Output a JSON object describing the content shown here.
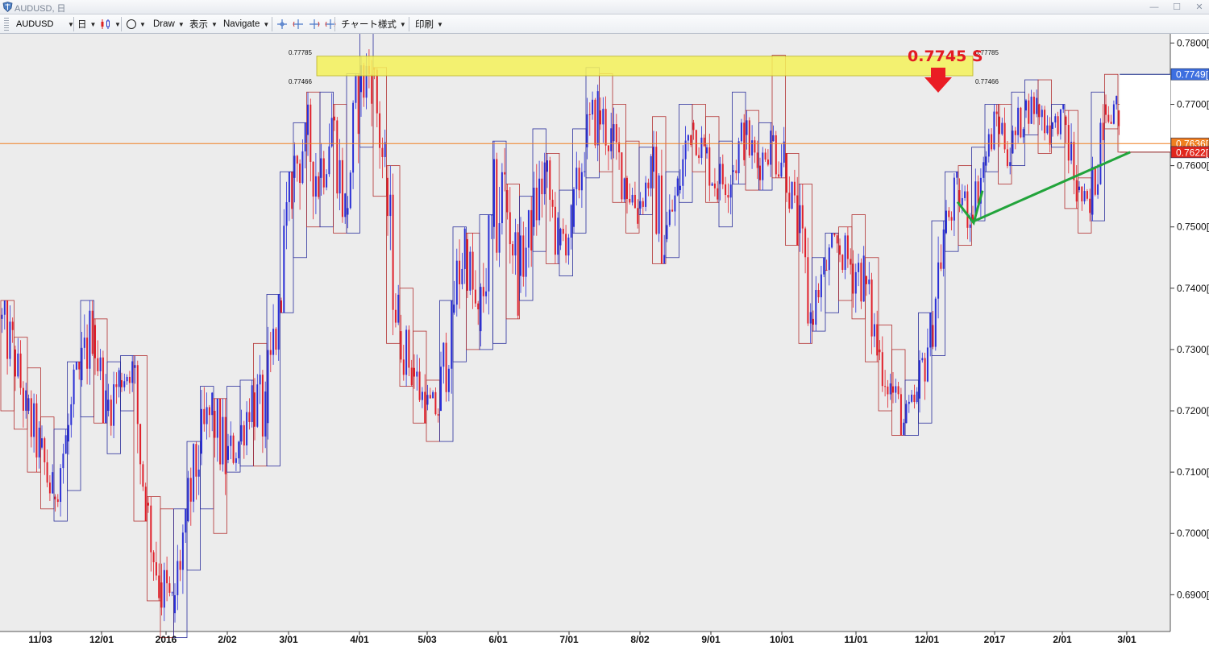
{
  "window": {
    "title": "AUDUSD, 日",
    "icon": "shield-logo-icon"
  },
  "toolbar": {
    "symbol": "AUDUSD",
    "timeframe": "日",
    "chart_type_icon": "candlestick-icon",
    "shape_icon": "circle-icon",
    "draw": "Draw",
    "display": "表示",
    "navigate": "Navigate",
    "crosshair_icons": [
      "crosshair-icon",
      "crosshair-left-icon",
      "crosshair-right-icon",
      "crosshair-both-icon"
    ],
    "chart_style": "チャート様式",
    "print": "印刷"
  },
  "colors": {
    "up": "#2a2fd6",
    "down": "#e01f2a",
    "zone": "#f5f25a",
    "current": "#f07f20",
    "tag_blue": "#3d6fe0",
    "tag_red": "#e1261d",
    "arrow_green": "#22a43b",
    "arrow_red": "#ea1c24"
  },
  "chart_data": {
    "type": "candlestick",
    "symbol": "AUDUSD",
    "timeframe": "日",
    "ylim": [
      0.684,
      0.7815
    ],
    "y_ticks": [
      "0.7800[0",
      "0.7700[0",
      "0.7600[0",
      "0.7500[0",
      "0.7400[0",
      "0.7300[0",
      "0.7200[0",
      "0.7100[0",
      "0.7000[0",
      "0.6900[0"
    ],
    "y_tick_values": [
      0.78,
      0.77,
      0.76,
      0.75,
      0.74,
      0.73,
      0.72,
      0.71,
      0.7,
      0.69
    ],
    "x_ticks": [
      "11/03",
      "12/01",
      "2016",
      "2/02",
      "3/01",
      "4/01",
      "5/03",
      "6/01",
      "7/01",
      "8/02",
      "9/01",
      "10/01",
      "11/01",
      "12/01",
      "2017",
      "2/01",
      "3/01"
    ],
    "x_tick_index": [
      8,
      27,
      47,
      66,
      85,
      107,
      128,
      150,
      172,
      194,
      216,
      238,
      261,
      283,
      304,
      325,
      345
    ],
    "resistance_zone": {
      "upper": 0.77785,
      "lower": 0.77466,
      "upper_label": "0.77785",
      "lower_label": "0.77466"
    },
    "annotation": "0.7745 S",
    "price_tags": [
      {
        "label": "0.7749[",
        "value": 0.7749,
        "color": "#3d6fe0"
      },
      {
        "label": "0.7636[",
        "value": 0.7636,
        "color": "#f07f20"
      },
      {
        "label": "0.7622[",
        "value": 0.7622,
        "color": "#e1261d"
      }
    ],
    "current_price": 0.7636,
    "forecast": {
      "direction": "down",
      "from": 0.7622,
      "to": 0.7525
    },
    "weekly_ranges": [
      {
        "o": 0.735,
        "h": 0.738,
        "l": 0.72,
        "c": 0.73
      },
      {
        "o": 0.73,
        "h": 0.732,
        "l": 0.717,
        "c": 0.72
      },
      {
        "o": 0.72,
        "h": 0.727,
        "l": 0.71,
        "c": 0.714
      },
      {
        "o": 0.714,
        "h": 0.719,
        "l": 0.704,
        "c": 0.706
      },
      {
        "o": 0.706,
        "h": 0.717,
        "l": 0.702,
        "c": 0.715
      },
      {
        "o": 0.715,
        "h": 0.728,
        "l": 0.707,
        "c": 0.725
      },
      {
        "o": 0.725,
        "h": 0.738,
        "l": 0.719,
        "c": 0.734
      },
      {
        "o": 0.734,
        "h": 0.735,
        "l": 0.718,
        "c": 0.72
      },
      {
        "o": 0.72,
        "h": 0.728,
        "l": 0.713,
        "c": 0.725
      },
      {
        "o": 0.725,
        "h": 0.729,
        "l": 0.72,
        "c": 0.727
      },
      {
        "o": 0.727,
        "h": 0.729,
        "l": 0.702,
        "c": 0.705
      },
      {
        "o": 0.705,
        "h": 0.706,
        "l": 0.689,
        "c": 0.692
      },
      {
        "o": 0.692,
        "h": 0.704,
        "l": 0.683,
        "c": 0.687
      },
      {
        "o": 0.687,
        "h": 0.704,
        "l": 0.683,
        "c": 0.702
      },
      {
        "o": 0.702,
        "h": 0.715,
        "l": 0.694,
        "c": 0.713
      },
      {
        "o": 0.713,
        "h": 0.724,
        "l": 0.704,
        "c": 0.72
      },
      {
        "o": 0.72,
        "h": 0.722,
        "l": 0.7,
        "c": 0.712
      },
      {
        "o": 0.712,
        "h": 0.724,
        "l": 0.71,
        "c": 0.715
      },
      {
        "o": 0.715,
        "h": 0.725,
        "l": 0.711,
        "c": 0.723
      },
      {
        "o": 0.723,
        "h": 0.731,
        "l": 0.711,
        "c": 0.718
      },
      {
        "o": 0.718,
        "h": 0.739,
        "l": 0.711,
        "c": 0.738
      },
      {
        "o": 0.738,
        "h": 0.759,
        "l": 0.736,
        "c": 0.758
      },
      {
        "o": 0.758,
        "h": 0.767,
        "l": 0.745,
        "c": 0.765
      },
      {
        "o": 0.765,
        "h": 0.772,
        "l": 0.75,
        "c": 0.758
      },
      {
        "o": 0.758,
        "h": 0.772,
        "l": 0.75,
        "c": 0.768
      },
      {
        "o": 0.768,
        "h": 0.77,
        "l": 0.749,
        "c": 0.752
      },
      {
        "o": 0.752,
        "h": 0.775,
        "l": 0.749,
        "c": 0.772
      },
      {
        "o": 0.772,
        "h": 0.784,
        "l": 0.763,
        "c": 0.776
      },
      {
        "o": 0.776,
        "h": 0.776,
        "l": 0.755,
        "c": 0.758
      },
      {
        "o": 0.758,
        "h": 0.76,
        "l": 0.731,
        "c": 0.733
      },
      {
        "o": 0.733,
        "h": 0.74,
        "l": 0.724,
        "c": 0.727
      },
      {
        "o": 0.727,
        "h": 0.733,
        "l": 0.718,
        "c": 0.721
      },
      {
        "o": 0.721,
        "h": 0.725,
        "l": 0.715,
        "c": 0.72
      },
      {
        "o": 0.72,
        "h": 0.738,
        "l": 0.715,
        "c": 0.736
      },
      {
        "o": 0.736,
        "h": 0.75,
        "l": 0.728,
        "c": 0.748
      },
      {
        "o": 0.748,
        "h": 0.749,
        "l": 0.73,
        "c": 0.733
      },
      {
        "o": 0.733,
        "h": 0.752,
        "l": 0.73,
        "c": 0.75
      },
      {
        "o": 0.75,
        "h": 0.764,
        "l": 0.731,
        "c": 0.756
      },
      {
        "o": 0.756,
        "h": 0.757,
        "l": 0.735,
        "c": 0.742
      },
      {
        "o": 0.742,
        "h": 0.755,
        "l": 0.738,
        "c": 0.75
      },
      {
        "o": 0.75,
        "h": 0.766,
        "l": 0.746,
        "c": 0.759
      },
      {
        "o": 0.759,
        "h": 0.762,
        "l": 0.744,
        "c": 0.747
      },
      {
        "o": 0.747,
        "h": 0.756,
        "l": 0.742,
        "c": 0.75
      },
      {
        "o": 0.75,
        "h": 0.766,
        "l": 0.749,
        "c": 0.763
      },
      {
        "o": 0.763,
        "h": 0.776,
        "l": 0.758,
        "c": 0.769
      },
      {
        "o": 0.769,
        "h": 0.775,
        "l": 0.759,
        "c": 0.764
      },
      {
        "o": 0.764,
        "h": 0.77,
        "l": 0.754,
        "c": 0.758
      },
      {
        "o": 0.758,
        "h": 0.764,
        "l": 0.749,
        "c": 0.753
      },
      {
        "o": 0.753,
        "h": 0.763,
        "l": 0.752,
        "c": 0.759
      },
      {
        "o": 0.759,
        "h": 0.768,
        "l": 0.744,
        "c": 0.748
      },
      {
        "o": 0.748,
        "h": 0.759,
        "l": 0.745,
        "c": 0.756
      },
      {
        "o": 0.756,
        "h": 0.77,
        "l": 0.754,
        "c": 0.767
      },
      {
        "o": 0.767,
        "h": 0.77,
        "l": 0.759,
        "c": 0.762
      },
      {
        "o": 0.762,
        "h": 0.768,
        "l": 0.754,
        "c": 0.757
      },
      {
        "o": 0.757,
        "h": 0.764,
        "l": 0.75,
        "c": 0.759
      },
      {
        "o": 0.759,
        "h": 0.772,
        "l": 0.757,
        "c": 0.765
      },
      {
        "o": 0.765,
        "h": 0.769,
        "l": 0.756,
        "c": 0.76
      },
      {
        "o": 0.76,
        "h": 0.767,
        "l": 0.756,
        "c": 0.764
      },
      {
        "o": 0.764,
        "h": 0.778,
        "l": 0.758,
        "c": 0.762
      },
      {
        "o": 0.762,
        "h": 0.762,
        "l": 0.747,
        "c": 0.749
      },
      {
        "o": 0.749,
        "h": 0.757,
        "l": 0.731,
        "c": 0.735
      },
      {
        "o": 0.735,
        "h": 0.745,
        "l": 0.733,
        "c": 0.743
      },
      {
        "o": 0.743,
        "h": 0.749,
        "l": 0.736,
        "c": 0.747
      },
      {
        "o": 0.747,
        "h": 0.75,
        "l": 0.738,
        "c": 0.744
      },
      {
        "o": 0.744,
        "h": 0.752,
        "l": 0.735,
        "c": 0.742
      },
      {
        "o": 0.742,
        "h": 0.745,
        "l": 0.728,
        "c": 0.73
      },
      {
        "o": 0.73,
        "h": 0.734,
        "l": 0.72,
        "c": 0.724
      },
      {
        "o": 0.724,
        "h": 0.73,
        "l": 0.716,
        "c": 0.718
      },
      {
        "o": 0.718,
        "h": 0.725,
        "l": 0.716,
        "c": 0.722
      },
      {
        "o": 0.722,
        "h": 0.736,
        "l": 0.718,
        "c": 0.734
      },
      {
        "o": 0.734,
        "h": 0.751,
        "l": 0.729,
        "c": 0.749
      },
      {
        "o": 0.749,
        "h": 0.759,
        "l": 0.746,
        "c": 0.756
      },
      {
        "o": 0.756,
        "h": 0.76,
        "l": 0.747,
        "c": 0.752
      },
      {
        "o": 0.752,
        "h": 0.763,
        "l": 0.751,
        "c": 0.76
      },
      {
        "o": 0.76,
        "h": 0.77,
        "l": 0.759,
        "c": 0.768
      },
      {
        "o": 0.768,
        "h": 0.77,
        "l": 0.757,
        "c": 0.762
      },
      {
        "o": 0.762,
        "h": 0.772,
        "l": 0.76,
        "c": 0.769
      },
      {
        "o": 0.769,
        "h": 0.774,
        "l": 0.765,
        "c": 0.77
      },
      {
        "o": 0.77,
        "h": 0.774,
        "l": 0.762,
        "c": 0.766
      },
      {
        "o": 0.766,
        "h": 0.77,
        "l": 0.763,
        "c": 0.768
      },
      {
        "o": 0.768,
        "h": 0.769,
        "l": 0.753,
        "c": 0.756
      },
      {
        "o": 0.756,
        "h": 0.758,
        "l": 0.749,
        "c": 0.752
      },
      {
        "o": 0.752,
        "h": 0.772,
        "l": 0.751,
        "c": 0.77
      },
      {
        "o": 0.77,
        "h": 0.7749,
        "l": 0.766,
        "c": 0.769
      },
      {
        "o": 0.769,
        "h": 0.77,
        "l": 0.7622,
        "c": 0.7636
      }
    ]
  }
}
